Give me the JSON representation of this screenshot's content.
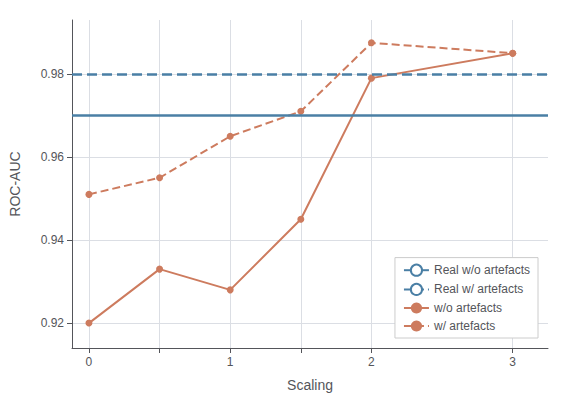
{
  "chart_data": {
    "type": "line",
    "xlabel": "Scaling",
    "ylabel": "ROC-AUC",
    "x": [
      0,
      0.5,
      1,
      1.5,
      2,
      3
    ],
    "series": [
      {
        "name": "Real w/o artefacts",
        "type": "hline",
        "y": 0.972,
        "color": "#4a7fa5",
        "line_style": "solid"
      },
      {
        "name": "Real w/ artefacts",
        "type": "hline",
        "y": 0.981,
        "color": "#4a7fa5",
        "line_style": "dashed"
      },
      {
        "name": "w/o artefacts",
        "type": "line",
        "values": [
          0.92,
          0.933,
          0.928,
          0.945,
          0.979,
          0.985
        ],
        "color": "#cd7b5e",
        "line_style": "solid",
        "marker": "circle"
      },
      {
        "name": "w/ artefacts",
        "type": "line",
        "values": [
          0.951,
          0.955,
          0.965,
          0.971,
          0.9875,
          0.985
        ],
        "color": "#cd7b5e",
        "line_style": "dashed",
        "marker": "circle"
      }
    ],
    "xlim": [
      -0.12,
      3.25
    ],
    "ylim": [
      0.914,
      0.993
    ],
    "xticks": [
      0,
      {
        "value": 0.5,
        "label": null
      },
      1,
      {
        "value": 1.5,
        "label": null
      },
      2,
      3
    ],
    "yticks": [
      0.92,
      0.94,
      0.96,
      0.98
    ],
    "grid": true,
    "legend": "lower right"
  }
}
